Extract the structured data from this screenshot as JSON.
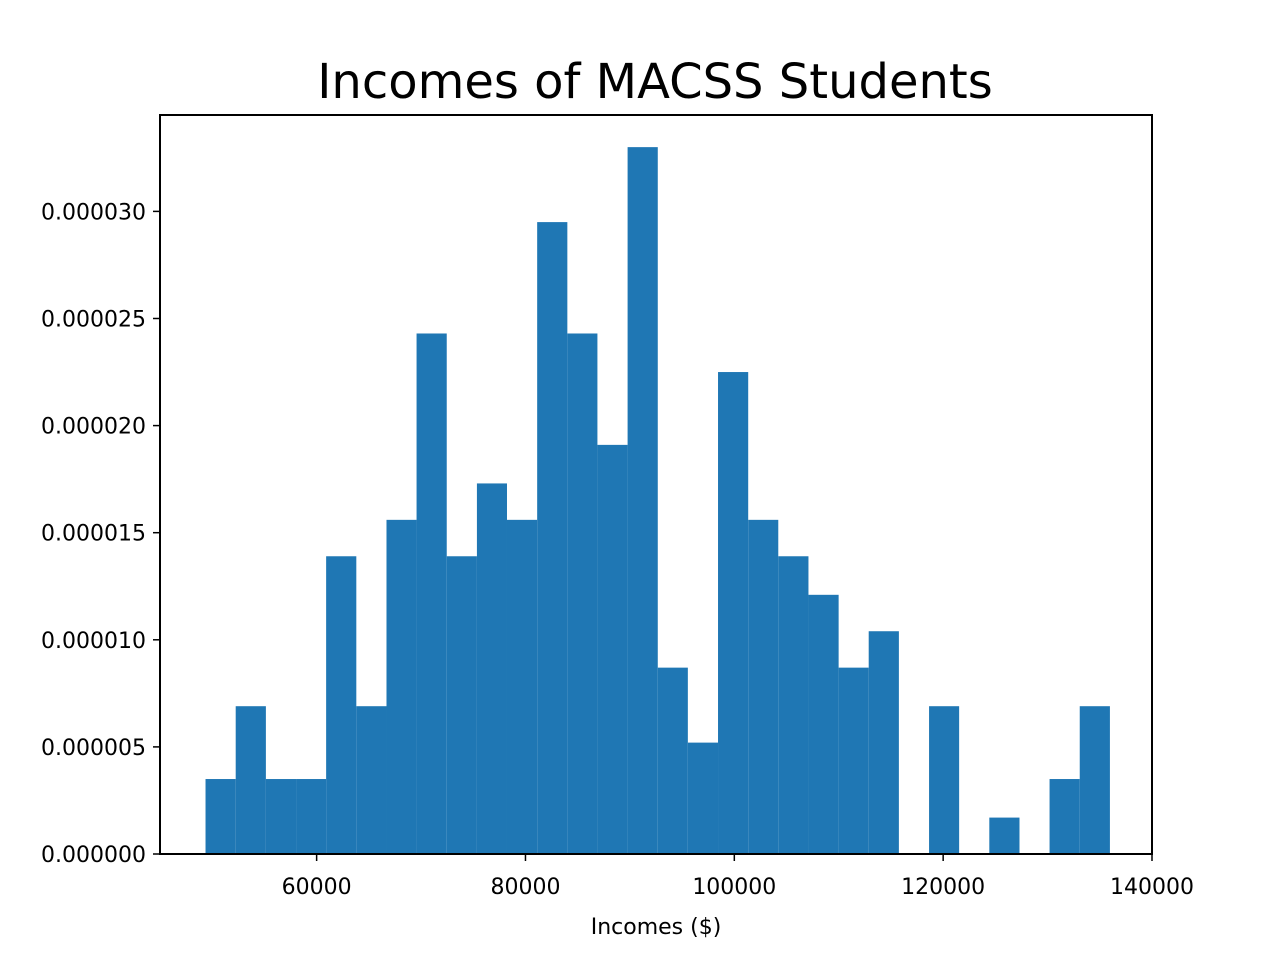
{
  "chart_data": {
    "type": "bar",
    "title": "Incomes of MACSS Students",
    "xlabel": "Incomes ($)",
    "ylabel": "",
    "bar_color": "#1f77b4",
    "xlim": [
      45000,
      140000
    ],
    "ylim": [
      0,
      3.45e-05
    ],
    "grid": false,
    "xticks": [
      {
        "value": 60000,
        "label": "60000"
      },
      {
        "value": 80000,
        "label": "80000"
      },
      {
        "value": 100000,
        "label": "100000"
      },
      {
        "value": 120000,
        "label": "120000"
      },
      {
        "value": 140000,
        "label": "140000"
      }
    ],
    "yticks": [
      {
        "value": 0,
        "label": "0.000000"
      },
      {
        "value": 5e-06,
        "label": "0.000005"
      },
      {
        "value": 1e-05,
        "label": "0.000010"
      },
      {
        "value": 1.5e-05,
        "label": "0.000015"
      },
      {
        "value": 2e-05,
        "label": "0.000020"
      },
      {
        "value": 2.5e-05,
        "label": "0.000025"
      },
      {
        "value": 3e-05,
        "label": "0.000030"
      }
    ],
    "bins": [
      {
        "x0": 49360,
        "x1": 52250,
        "density": 3.5e-06
      },
      {
        "x0": 52250,
        "x1": 55140,
        "density": 6.9e-06
      },
      {
        "x0": 55140,
        "x1": 58030,
        "density": 3.5e-06
      },
      {
        "x0": 58030,
        "x1": 60910,
        "density": 3.5e-06
      },
      {
        "x0": 60910,
        "x1": 63800,
        "density": 1.39e-05
      },
      {
        "x0": 63800,
        "x1": 66690,
        "density": 6.9e-06
      },
      {
        "x0": 66690,
        "x1": 69570,
        "density": 1.56e-05
      },
      {
        "x0": 69570,
        "x1": 72460,
        "density": 2.43e-05
      },
      {
        "x0": 72460,
        "x1": 75350,
        "density": 1.39e-05
      },
      {
        "x0": 75350,
        "x1": 78230,
        "density": 1.73e-05
      },
      {
        "x0": 78230,
        "x1": 81120,
        "density": 1.56e-05
      },
      {
        "x0": 81120,
        "x1": 84010,
        "density": 2.95e-05
      },
      {
        "x0": 84010,
        "x1": 86890,
        "density": 2.43e-05
      },
      {
        "x0": 86890,
        "x1": 89780,
        "density": 1.91e-05
      },
      {
        "x0": 89780,
        "x1": 92670,
        "density": 3.3e-05
      },
      {
        "x0": 92670,
        "x1": 95550,
        "density": 8.7e-06
      },
      {
        "x0": 95550,
        "x1": 98440,
        "density": 5.2e-06
      },
      {
        "x0": 98440,
        "x1": 101330,
        "density": 2.25e-05
      },
      {
        "x0": 101330,
        "x1": 104210,
        "density": 1.56e-05
      },
      {
        "x0": 104210,
        "x1": 107100,
        "density": 1.39e-05
      },
      {
        "x0": 107100,
        "x1": 109990,
        "density": 1.21e-05
      },
      {
        "x0": 109990,
        "x1": 112870,
        "density": 8.7e-06
      },
      {
        "x0": 112870,
        "x1": 115760,
        "density": 1.04e-05
      },
      {
        "x0": 115760,
        "x1": 118650,
        "density": 0
      },
      {
        "x0": 118650,
        "x1": 121530,
        "density": 6.9e-06
      },
      {
        "x0": 121530,
        "x1": 124420,
        "density": 0
      },
      {
        "x0": 124420,
        "x1": 127310,
        "density": 1.7e-06
      },
      {
        "x0": 127310,
        "x1": 130190,
        "density": 0
      },
      {
        "x0": 130190,
        "x1": 133080,
        "density": 3.5e-06
      },
      {
        "x0": 133080,
        "x1": 135970,
        "density": 6.9e-06
      }
    ]
  }
}
